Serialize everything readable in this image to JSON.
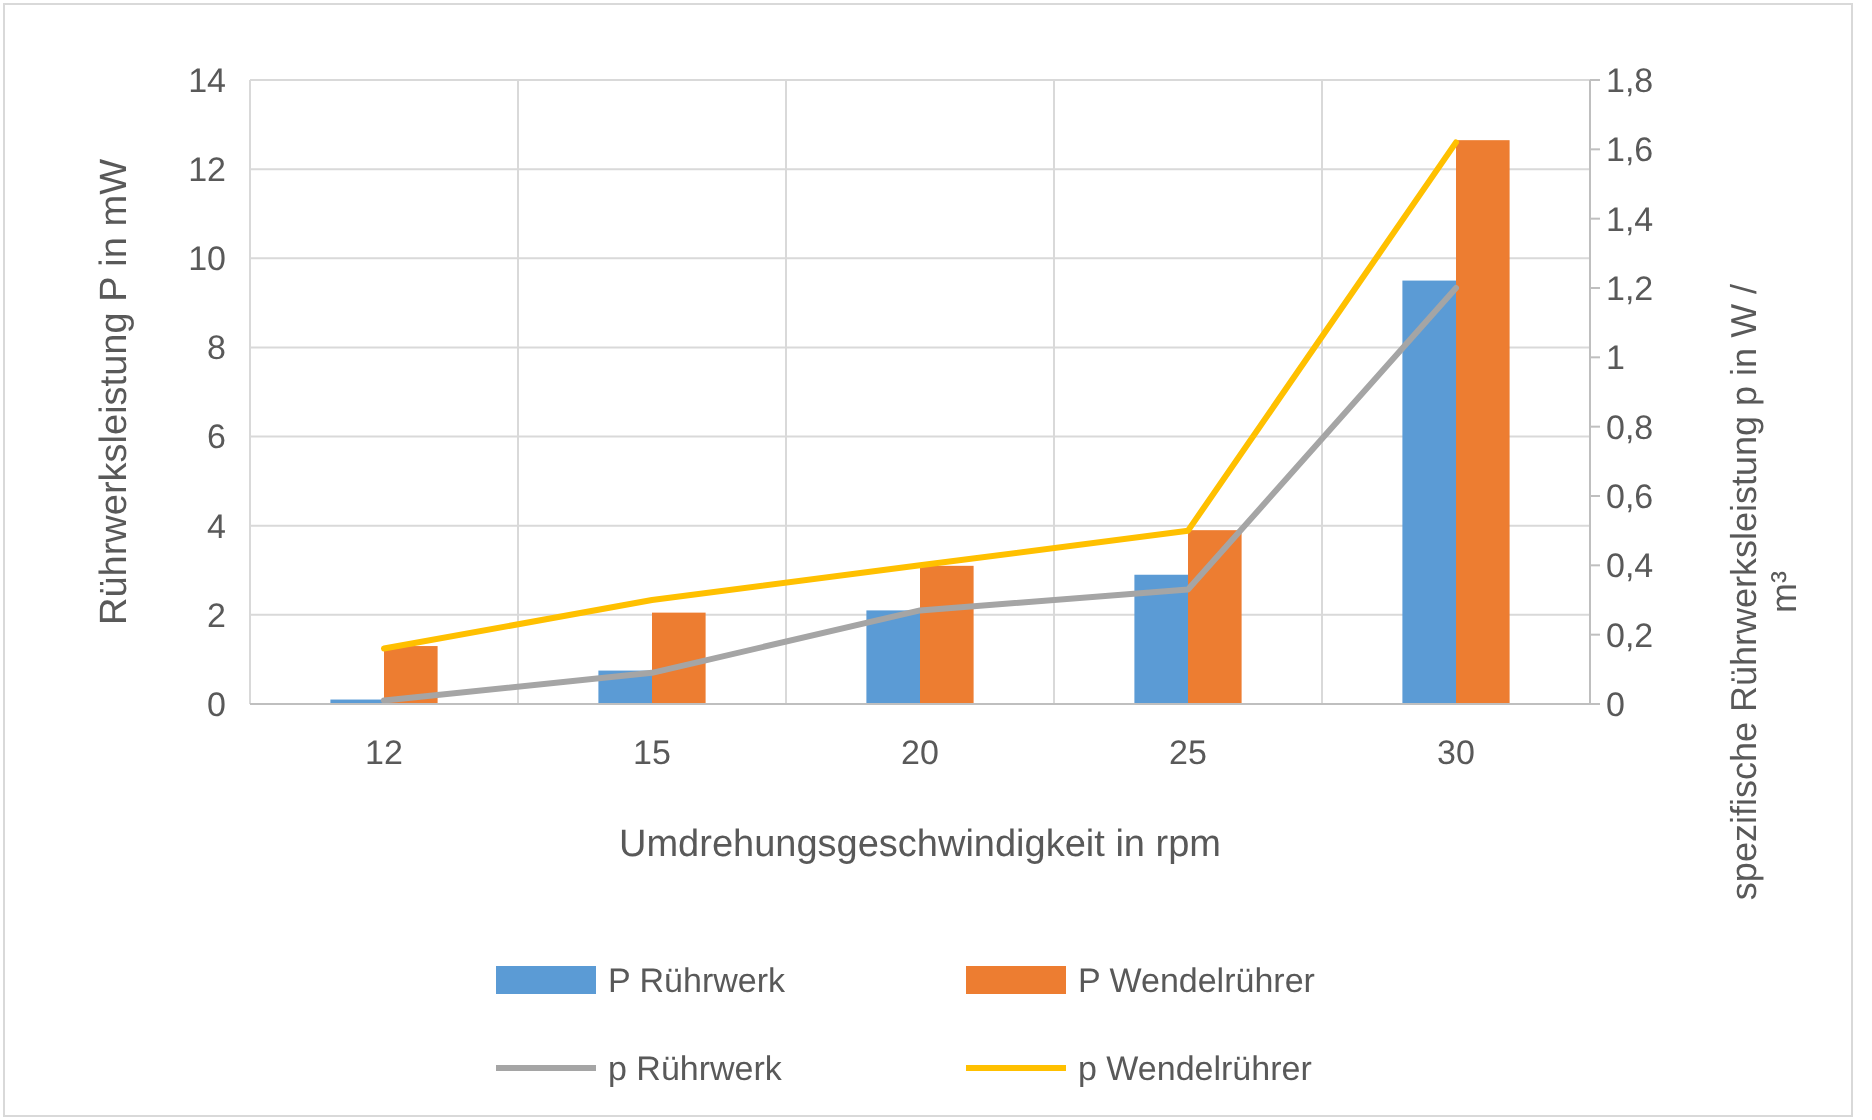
{
  "chart_data": {
    "type": "bar",
    "xlabel": "Umdrehungsgeschwindigkeit in rpm",
    "ylabel": "Rührwerksleistung P in mW",
    "y2label": "spezifische Rührwerksleistung p in W / m³",
    "categories": [
      "12",
      "15",
      "20",
      "25",
      "30"
    ],
    "series": [
      {
        "name": "P Rührwerk",
        "color": "#5b9bd5",
        "values": [
          0.1,
          0.75,
          2.1,
          2.9,
          9.5
        ]
      },
      {
        "name": "P Wendelrührer",
        "color": "#ed7d31",
        "values": [
          1.3,
          2.05,
          3.1,
          3.9,
          12.65
        ]
      },
      {
        "name": "p Rührwerk",
        "type": "line",
        "axis": "y2",
        "color": "#a5a5a5",
        "values": [
          0.01,
          0.09,
          0.27,
          0.33,
          1.2
        ]
      },
      {
        "name": "p Wendelrührer",
        "type": "line",
        "axis": "y2",
        "color": "#ffc000",
        "values": [
          0.16,
          0.3,
          0.4,
          0.5,
          1.62
        ]
      }
    ],
    "ylim": [
      0,
      14
    ],
    "yticks": [
      0,
      2,
      4,
      6,
      8,
      10,
      12,
      14
    ],
    "y2lim": [
      0,
      1.8
    ],
    "y2ticks": [
      {
        "value": 0,
        "label": "0"
      },
      {
        "value": 0.2,
        "label": "0,2"
      },
      {
        "value": 0.4,
        "label": "0,4"
      },
      {
        "value": 0.6,
        "label": "0,6"
      },
      {
        "value": 0.8,
        "label": "0,8"
      },
      {
        "value": 1,
        "label": "1"
      },
      {
        "value": 1.2,
        "label": "1,2"
      },
      {
        "value": 1.4,
        "label": "1,4"
      },
      {
        "value": 1.6,
        "label": "1,6"
      },
      {
        "value": 1.8,
        "label": "1,8"
      }
    ],
    "grid": true,
    "legend": "bottom"
  }
}
